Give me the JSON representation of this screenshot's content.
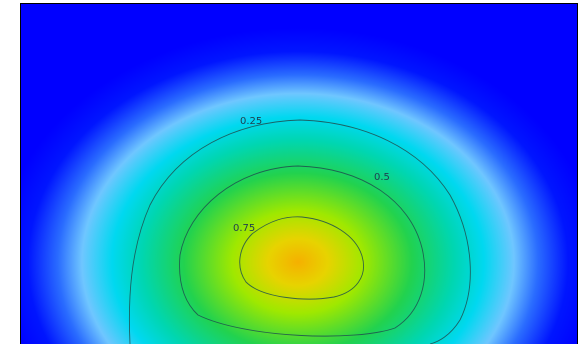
{
  "chart_data": {
    "type": "heatmap",
    "title": "",
    "xlabel": "",
    "ylabel": "",
    "colormap": [
      "#0000ff",
      "#00aaff",
      "#00e5c8",
      "#00d85a",
      "#b8ef00",
      "#f5b800"
    ],
    "contours": [
      {
        "level": 0.25,
        "label": "0.25"
      },
      {
        "level": 0.5,
        "label": "0.5"
      },
      {
        "level": 0.75,
        "label": "0.75"
      }
    ],
    "legend": "none",
    "grid": false
  }
}
